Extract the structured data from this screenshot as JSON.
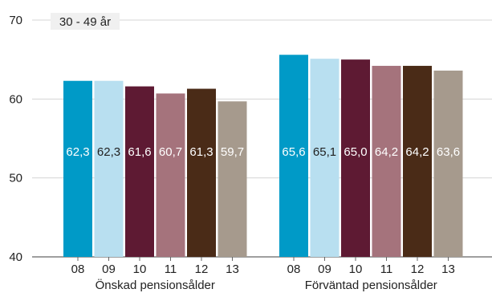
{
  "chart_data": {
    "type": "bar",
    "title": "30 - 49 år",
    "ylim": [
      40,
      70
    ],
    "yticks": [
      40,
      50,
      60,
      70
    ],
    "grid": true,
    "categories": [
      "08",
      "09",
      "10",
      "11",
      "12",
      "13"
    ],
    "groups": [
      {
        "label": "Önskad pensionsålder",
        "values": [
          62.3,
          62.3,
          61.6,
          60.7,
          61.3,
          59.7
        ],
        "value_labels": [
          "62,3",
          "62,3",
          "61,6",
          "60,7",
          "61,3",
          "59,7"
        ]
      },
      {
        "label": "Förväntad pensionsålder",
        "values": [
          65.6,
          65.1,
          65.0,
          64.2,
          64.2,
          63.6
        ],
        "value_labels": [
          "65,6",
          "65,1",
          "65,0",
          "64,2",
          "64,2",
          "63,6"
        ]
      }
    ],
    "colors": [
      "#009ac7",
      "#b8dff0",
      "#5e1a33",
      "#a5737c",
      "#4a2b17",
      "#a69a8d"
    ],
    "label_colors": [
      "#ffffff",
      "#222222",
      "#ffffff",
      "#ffffff",
      "#ffffff",
      "#ffffff"
    ]
  }
}
